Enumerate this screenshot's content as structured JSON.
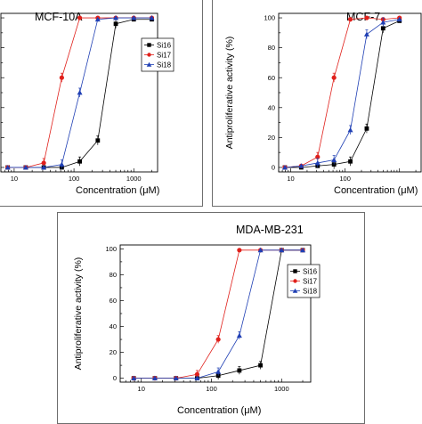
{
  "chart_data": [
    {
      "type": "scatter",
      "title": "MCF-10A",
      "xlabel": "Concentration (μM)",
      "ylabel": "",
      "x_scale": "log",
      "xlim": [
        6,
        2500
      ],
      "ylim": [
        -3,
        103
      ],
      "x_ticks": [
        "10",
        "100",
        "1000"
      ],
      "y_ticks": [],
      "legend": {
        "placement": "right",
        "entries": [
          "Si16",
          "Si17",
          "Si18"
        ]
      },
      "series": [
        {
          "name": "Si16",
          "color": "#000000",
          "marker": "square",
          "x": [
            7.8,
            15.6,
            31.25,
            62.5,
            125,
            250,
            500,
            1000,
            2000
          ],
          "y": [
            0,
            0,
            0,
            0,
            4,
            18,
            96,
            99,
            99
          ]
        },
        {
          "name": "Si17",
          "color": "#e0201b",
          "marker": "circle",
          "x": [
            7.8,
            15.6,
            31.25,
            62.5,
            125,
            250,
            500,
            1000,
            2000
          ],
          "y": [
            0,
            0,
            3,
            60,
            100,
            100,
            100,
            100,
            100
          ]
        },
        {
          "name": "Si18",
          "color": "#1f3fb4",
          "marker": "triangle",
          "x": [
            7.8,
            15.6,
            31.25,
            62.5,
            125,
            250,
            500,
            1000,
            2000
          ],
          "y": [
            0,
            0,
            0,
            2,
            50,
            99,
            100,
            100,
            100
          ]
        }
      ]
    },
    {
      "type": "scatter",
      "title": "MCF-7",
      "xlabel": "Concentration (μM)",
      "ylabel": "Antiproliferative activity (%)",
      "x_scale": "log",
      "xlim": [
        6,
        2500
      ],
      "ylim": [
        -3,
        103
      ],
      "x_ticks": [
        "10",
        "100"
      ],
      "y_ticks": [
        "0",
        "20",
        "40",
        "60",
        "80",
        "100"
      ],
      "legend": {
        "placement": "right",
        "entries": []
      },
      "series": [
        {
          "name": "",
          "color": "#000000",
          "marker": "square",
          "x": [
            7.8,
            15.6,
            31.25,
            62.5,
            125,
            250,
            500,
            1000
          ],
          "y": [
            0,
            0,
            1,
            2,
            4,
            26,
            93,
            98
          ]
        },
        {
          "name": "",
          "color": "#e0201b",
          "marker": "circle",
          "x": [
            7.8,
            15.6,
            31.25,
            62.5,
            125,
            250,
            500,
            1000
          ],
          "y": [
            0,
            1,
            7,
            60,
            99,
            100,
            99,
            100
          ]
        },
        {
          "name": "",
          "color": "#1f3fb4",
          "marker": "triangle",
          "x": [
            7.8,
            15.6,
            31.25,
            62.5,
            125,
            250,
            500,
            1000
          ],
          "y": [
            0,
            1,
            3,
            5,
            25,
            89,
            97,
            99
          ]
        }
      ]
    },
    {
      "type": "scatter",
      "title": "MDA-MB-231",
      "xlabel": "Concentration (μM)",
      "ylabel": "Antiproliferative activity (%)",
      "x_scale": "log",
      "xlim": [
        5,
        2600
      ],
      "ylim": [
        -3,
        103
      ],
      "x_ticks": [
        "10",
        "100",
        "1000"
      ],
      "y_ticks": [
        "0",
        "20",
        "40",
        "60",
        "80",
        "100"
      ],
      "legend": {
        "placement": "right",
        "entries": [
          "Si16",
          "Si17",
          "Si18"
        ]
      },
      "series": [
        {
          "name": "Si16",
          "color": "#000000",
          "marker": "square",
          "x": [
            7.8,
            15.6,
            31.25,
            62.5,
            125,
            250,
            500,
            1000,
            2000
          ],
          "y": [
            0,
            0,
            0,
            0,
            2,
            6,
            10,
            99,
            99
          ]
        },
        {
          "name": "Si17",
          "color": "#e0201b",
          "marker": "circle",
          "x": [
            7.8,
            15.6,
            31.25,
            62.5,
            125,
            250,
            500,
            1000,
            2000
          ],
          "y": [
            0,
            0,
            0,
            3,
            30,
            99,
            99,
            99,
            99
          ]
        },
        {
          "name": "Si18",
          "color": "#1f3fb4",
          "marker": "triangle",
          "x": [
            7.8,
            15.6,
            31.25,
            62.5,
            125,
            250,
            500,
            1000,
            2000
          ],
          "y": [
            0,
            0,
            0,
            0,
            5,
            33,
            99,
            99,
            99
          ]
        }
      ]
    }
  ]
}
